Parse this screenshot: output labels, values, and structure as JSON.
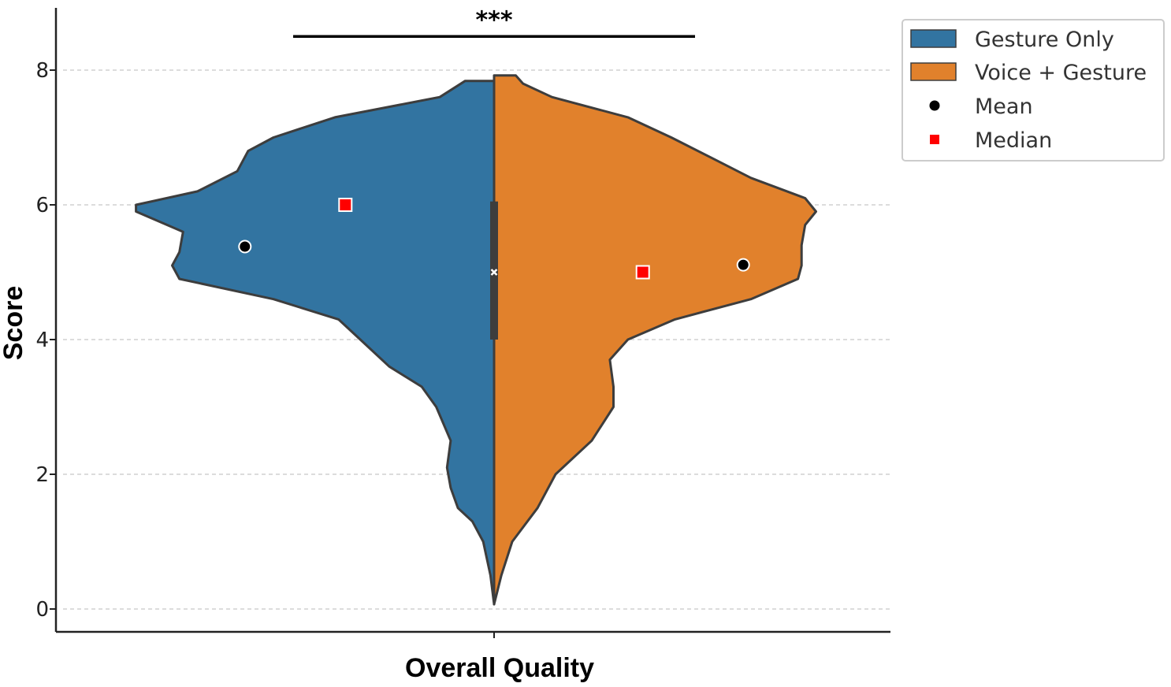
{
  "chart_data": {
    "type": "violin",
    "split": true,
    "xlabel": "Overall Quality",
    "ylabel": "Score",
    "category": "Overall Quality",
    "ylim": [
      -0.35,
      8.9
    ],
    "yticks": [
      "0",
      "2",
      "4",
      "6",
      "8"
    ],
    "grid": "horizontal dashed",
    "legend_position": "upper-right outside",
    "significance": {
      "label": "***",
      "from_x": -0.5,
      "to_x": 0.5,
      "y": 8.5
    },
    "legend": [
      {
        "label": "Gesture Only",
        "kind": "patch",
        "color": "#3274a1"
      },
      {
        "label": "Voice + Gesture",
        "kind": "patch",
        "color": "#e1812c"
      },
      {
        "label": "Mean",
        "kind": "circle",
        "color": "#000000"
      },
      {
        "label": "Median",
        "kind": "square",
        "color": "#ff0000"
      }
    ],
    "series": [
      {
        "name": "Gesture Only",
        "side": "left",
        "color": "#3274a1",
        "mean": 5.38,
        "median": 6.0,
        "mean_x": -0.62,
        "median_x": -0.37,
        "density_profile": [
          [
            0.07,
            0.0
          ],
          [
            0.5,
            0.01
          ],
          [
            1.0,
            0.03
          ],
          [
            1.3,
            0.06
          ],
          [
            1.5,
            0.1
          ],
          [
            1.8,
            0.12
          ],
          [
            2.1,
            0.13
          ],
          [
            2.5,
            0.12
          ],
          [
            3.0,
            0.16
          ],
          [
            3.3,
            0.2
          ],
          [
            3.6,
            0.29
          ],
          [
            4.0,
            0.37
          ],
          [
            4.3,
            0.43
          ],
          [
            4.6,
            0.61
          ],
          [
            4.9,
            0.87
          ],
          [
            5.1,
            0.89
          ],
          [
            5.3,
            0.87
          ],
          [
            5.6,
            0.86
          ],
          [
            5.9,
            0.99
          ],
          [
            6.0,
            0.99
          ],
          [
            6.2,
            0.82
          ],
          [
            6.5,
            0.71
          ],
          [
            6.8,
            0.68
          ],
          [
            7.0,
            0.61
          ],
          [
            7.3,
            0.44
          ],
          [
            7.6,
            0.15
          ],
          [
            7.84,
            0.08
          ],
          [
            7.84,
            0.0
          ]
        ]
      },
      {
        "name": "Voice + Gesture",
        "side": "right",
        "color": "#e1812c",
        "mean": 5.11,
        "median": 5.0,
        "mean_x": 0.62,
        "median_x": 0.37,
        "density_profile": [
          [
            0.07,
            0.0
          ],
          [
            0.5,
            0.02
          ],
          [
            1.0,
            0.05
          ],
          [
            1.5,
            0.12
          ],
          [
            2.0,
            0.17
          ],
          [
            2.5,
            0.27
          ],
          [
            3.0,
            0.33
          ],
          [
            3.3,
            0.33
          ],
          [
            3.7,
            0.32
          ],
          [
            4.0,
            0.37
          ],
          [
            4.3,
            0.5
          ],
          [
            4.6,
            0.71
          ],
          [
            4.9,
            0.84
          ],
          [
            5.1,
            0.85
          ],
          [
            5.4,
            0.85
          ],
          [
            5.7,
            0.86
          ],
          [
            5.9,
            0.89
          ],
          [
            6.1,
            0.86
          ],
          [
            6.4,
            0.71
          ],
          [
            6.7,
            0.6
          ],
          [
            7.0,
            0.49
          ],
          [
            7.3,
            0.37
          ],
          [
            7.6,
            0.16
          ],
          [
            7.8,
            0.08
          ],
          [
            7.92,
            0.06
          ],
          [
            7.92,
            0.0
          ]
        ]
      }
    ],
    "inner_box": {
      "q1": 4.0,
      "q3": 6.05,
      "whisker_low": 4.0,
      "whisker_high": 7.0,
      "center": 5.0
    }
  }
}
